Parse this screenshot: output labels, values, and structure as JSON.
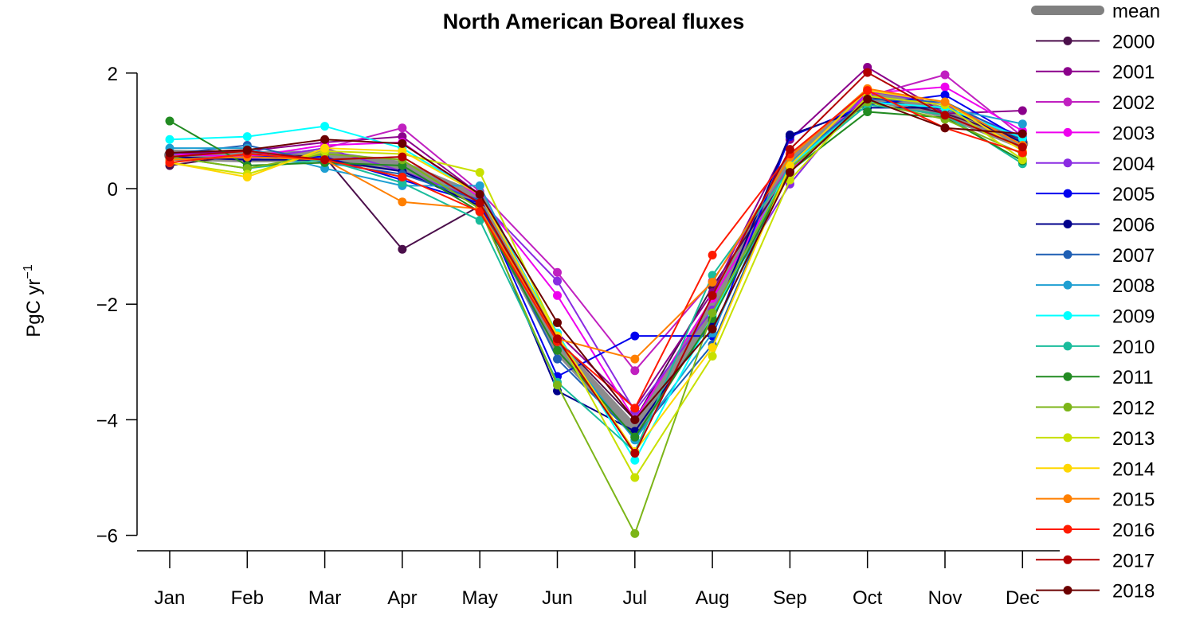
{
  "chart_data": {
    "type": "line",
    "title": "North American Boreal fluxes",
    "xlabel": "",
    "ylabel": "PgC yr",
    "ylabel_sup": "−1",
    "categories": [
      "Jan",
      "Feb",
      "Mar",
      "Apr",
      "May",
      "Jun",
      "Jul",
      "Aug",
      "Sep",
      "Oct",
      "Nov",
      "Dec"
    ],
    "yticks": [
      2,
      0,
      -2,
      -4,
      -6
    ],
    "ytick_labels": [
      "2",
      "0",
      "−2",
      "−4",
      "−6"
    ],
    "ylim": [
      -6.2,
      2.4
    ],
    "grid": false,
    "legend": "right",
    "mean": {
      "name": "mean",
      "color": "#808080",
      "values": [
        0.58,
        0.55,
        0.56,
        0.38,
        -0.18,
        -2.75,
        -4.2,
        -2.05,
        0.45,
        1.62,
        1.32,
        0.78
      ]
    },
    "series": [
      {
        "name": "2000",
        "color": "#4B0F4B",
        "values": [
          0.4,
          0.6,
          0.55,
          -1.05,
          -0.3,
          -2.6,
          -4.0,
          -1.7,
          0.3,
          1.6,
          1.3,
          0.85
        ]
      },
      {
        "name": "2001",
        "color": "#8B008B",
        "values": [
          0.6,
          0.65,
          0.8,
          0.9,
          -0.1,
          -2.5,
          -3.8,
          -1.8,
          0.85,
          2.1,
          1.3,
          1.35
        ]
      },
      {
        "name": "2002",
        "color": "#C020C0",
        "values": [
          0.55,
          0.5,
          0.7,
          1.05,
          -0.05,
          -1.45,
          -3.15,
          -1.6,
          0.4,
          1.6,
          1.97,
          0.9
        ]
      },
      {
        "name": "2003",
        "color": "#EE00EE",
        "values": [
          0.6,
          0.55,
          0.75,
          0.8,
          -0.15,
          -1.85,
          -4.0,
          -1.9,
          0.3,
          1.65,
          1.76,
          1.0
        ]
      },
      {
        "name": "2004",
        "color": "#8A2BE2",
        "values": [
          0.55,
          0.5,
          0.7,
          0.3,
          -0.2,
          -1.6,
          -3.85,
          -2.1,
          0.08,
          1.7,
          1.45,
          0.9
        ]
      },
      {
        "name": "2005",
        "color": "#0000EE",
        "values": [
          0.5,
          0.55,
          0.55,
          0.15,
          -0.25,
          -3.25,
          -2.55,
          -2.55,
          0.9,
          1.45,
          1.62,
          0.85
        ]
      },
      {
        "name": "2006",
        "color": "#00008B",
        "values": [
          0.55,
          0.5,
          0.5,
          0.3,
          -0.3,
          -3.5,
          -4.2,
          -2.3,
          0.93,
          1.4,
          1.4,
          0.8
        ]
      },
      {
        "name": "2007",
        "color": "#1E5FB4",
        "values": [
          0.6,
          0.75,
          0.45,
          0.25,
          -0.2,
          -2.95,
          -4.3,
          -2.7,
          0.45,
          1.55,
          1.5,
          0.85
        ]
      },
      {
        "name": "2008",
        "color": "#1E9FD2",
        "values": [
          0.7,
          0.7,
          0.35,
          0.05,
          0.05,
          -2.65,
          -4.35,
          -2.5,
          0.45,
          1.5,
          1.4,
          1.12
        ]
      },
      {
        "name": "2009",
        "color": "#00FFFF",
        "values": [
          0.85,
          0.9,
          1.08,
          0.7,
          -0.1,
          -2.5,
          -4.7,
          -2.2,
          0.4,
          1.5,
          1.4,
          0.88
        ]
      },
      {
        "name": "2010",
        "color": "#1ABC9C",
        "values": [
          0.55,
          0.35,
          0.5,
          0.1,
          -0.55,
          -3.35,
          -4.55,
          -1.5,
          0.35,
          1.45,
          1.28,
          0.43
        ]
      },
      {
        "name": "2011",
        "color": "#228B22",
        "values": [
          1.17,
          0.4,
          0.45,
          0.4,
          -0.4,
          -2.8,
          -4.3,
          -2.25,
          0.3,
          1.33,
          1.23,
          0.48
        ]
      },
      {
        "name": "2012",
        "color": "#7CB518",
        "values": [
          0.55,
          0.35,
          0.6,
          0.5,
          -0.35,
          -3.4,
          -5.97,
          -2.15,
          0.35,
          1.5,
          1.2,
          0.6
        ]
      },
      {
        "name": "2013",
        "color": "#C8E000",
        "values": [
          0.45,
          0.25,
          0.65,
          0.6,
          0.28,
          -2.55,
          -5.0,
          -2.9,
          0.15,
          1.6,
          1.45,
          0.5
        ]
      },
      {
        "name": "2014",
        "color": "#FFD700",
        "values": [
          0.45,
          0.2,
          0.7,
          0.65,
          -0.1,
          -2.55,
          -4.55,
          -2.75,
          0.4,
          1.7,
          1.5,
          0.65
        ]
      },
      {
        "name": "2015",
        "color": "#FF7F00",
        "values": [
          0.5,
          0.55,
          0.5,
          -0.23,
          -0.35,
          -2.6,
          -2.95,
          -1.62,
          0.55,
          1.73,
          1.5,
          0.75
        ]
      },
      {
        "name": "2016",
        "color": "#FF1A00",
        "values": [
          0.45,
          0.6,
          0.5,
          0.2,
          -0.4,
          -2.65,
          -3.8,
          -1.15,
          0.6,
          1.7,
          1.05,
          0.62
        ]
      },
      {
        "name": "2017",
        "color": "#B20000",
        "values": [
          0.55,
          0.65,
          0.5,
          0.55,
          -0.25,
          -2.6,
          -4.58,
          -1.85,
          0.68,
          2.01,
          1.27,
          0.72
        ]
      },
      {
        "name": "2018",
        "color": "#6B0000",
        "values": [
          0.62,
          0.67,
          0.85,
          0.78,
          -0.1,
          -2.32,
          -4.0,
          -2.43,
          0.28,
          1.55,
          1.05,
          0.95
        ]
      }
    ]
  }
}
